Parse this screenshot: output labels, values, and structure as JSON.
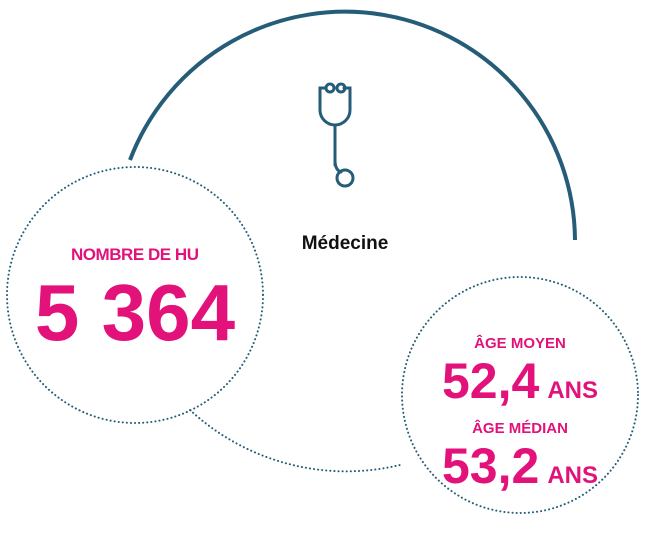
{
  "center": {
    "label": "Médecine"
  },
  "left": {
    "label": "NOMBRE DE HU",
    "value": "5 364"
  },
  "right": {
    "mean_label": "ÂGE MOYEN",
    "mean_value": "52,4",
    "mean_unit": "ANS",
    "median_label": "ÂGE MÉDIAN",
    "median_value": "53,2",
    "median_unit": "ANS"
  }
}
